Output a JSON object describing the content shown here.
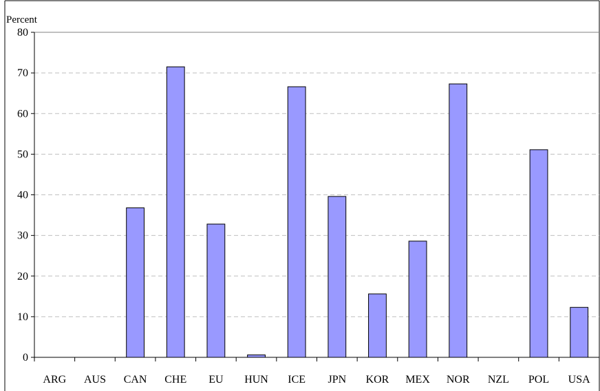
{
  "chart_data": {
    "type": "bar",
    "ylabel": "Percent",
    "xlabel": "",
    "title": "",
    "ylim": [
      0,
      80
    ],
    "yticks": [
      0,
      10,
      20,
      30,
      40,
      50,
      60,
      70,
      80
    ],
    "categories": [
      "ARG",
      "AUS",
      "CAN",
      "CHE",
      "EU",
      "HUN",
      "ICE",
      "JPN",
      "KOR",
      "MEX",
      "NOR",
      "NZL",
      "POL",
      "USA"
    ],
    "values": [
      0,
      0,
      36.8,
      71.5,
      32.8,
      0.6,
      66.6,
      39.6,
      15.6,
      28.6,
      67.3,
      0,
      51.1,
      12.3
    ],
    "grid": true,
    "legend": "none",
    "colors": {
      "bar_fill": "#9999ff",
      "bar_stroke": "#000000",
      "grid": "#bfbfbf",
      "axis": "#000000"
    }
  }
}
